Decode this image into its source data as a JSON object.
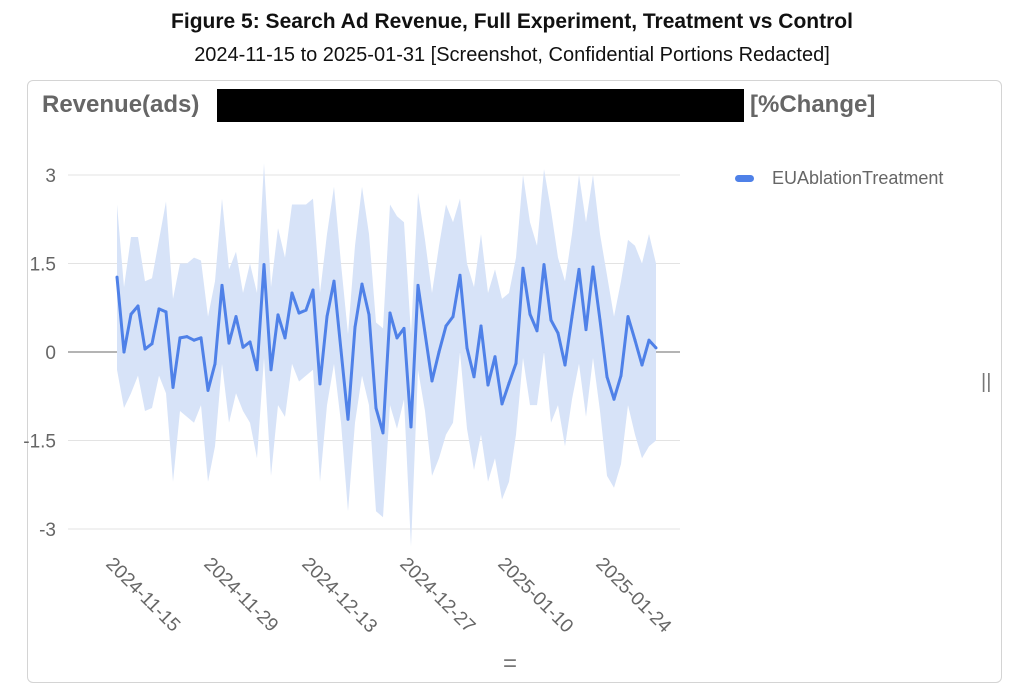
{
  "header": {
    "title": "Figure 5: Search Ad Revenue, Full Experiment, Treatment vs Control",
    "subtitle": "2024-11-15 to 2025-01-31 [Screenshot, Confidential Portions Redacted]"
  },
  "card": {
    "metric_label": "Revenue(ads)",
    "unit_label": "[%Change]",
    "vertical_handle": "||",
    "horizontal_handle": "="
  },
  "colors": {
    "line": "#4f81e8",
    "band": "#d7e3f8",
    "grid": "#e3e3e3",
    "zero": "#888888"
  },
  "chart_data": {
    "type": "line",
    "title": "Revenue(ads) [%Change]",
    "xlabel": "",
    "ylabel": "% Change",
    "x_start": "2024-11-15",
    "x_end": "2025-01-31",
    "x_ticks": [
      "2024-11-15",
      "2024-11-29",
      "2024-12-13",
      "2024-12-27",
      "2025-01-10",
      "2025-01-24"
    ],
    "y_ticks": [
      3,
      1.5,
      0,
      -1.5,
      -3
    ],
    "y_tick_labels": [
      "3",
      "1.5",
      "0",
      "-1.5",
      "-3"
    ],
    "ylim": [
      -3,
      3
    ],
    "grid": true,
    "legend": {
      "position": "right",
      "entries": [
        "EUAblationTreatment"
      ]
    },
    "series": [
      {
        "name": "EUAblationTreatment",
        "values": [
          1.27,
          0,
          0.64,
          0.78,
          0.05,
          0.14,
          0.73,
          0.68,
          -0.6,
          0.24,
          0.26,
          0.2,
          0.24,
          -0.65,
          -0.2,
          1.13,
          0.15,
          0.6,
          0.08,
          0.17,
          -0.3,
          1.48,
          -0.3,
          0.63,
          0.24,
          1.0,
          0.66,
          0.71,
          1.05,
          -0.54,
          0.6,
          1.2,
          0.03,
          -1.14,
          0.42,
          1.15,
          0.63,
          -0.95,
          -1.37,
          0.66,
          0.24,
          0.4,
          -1.27,
          1.13,
          0.32,
          -0.49,
          0,
          0.44,
          0.6,
          1.3,
          0.07,
          -0.42,
          0.44,
          -0.56,
          -0.08,
          -0.88,
          -0.53,
          -0.19,
          1.42,
          0.64,
          0.36,
          1.48,
          0.54,
          0.32,
          -0.22,
          0.6,
          1.4,
          0.38,
          1.44,
          0.54,
          -0.42,
          -0.8,
          -0.4,
          0.6,
          0.2,
          -0.22,
          0.2,
          0.07
        ],
        "upper": [
          2.5,
          1.1,
          1.95,
          1.95,
          1.2,
          1.25,
          1.9,
          2.55,
          0.9,
          1.5,
          1.5,
          1.6,
          1.55,
          0.6,
          1.2,
          2.6,
          1.4,
          1.7,
          1.0,
          1.5,
          1.0,
          3.2,
          1.1,
          2.1,
          1.6,
          2.5,
          2.5,
          2.5,
          2.6,
          1.0,
          2.0,
          2.8,
          1.5,
          0.3,
          1.8,
          2.8,
          2.0,
          0.5,
          0.4,
          2.5,
          2.3,
          2.2,
          0.3,
          2.7,
          1.9,
          1.0,
          1.8,
          2.5,
          2.2,
          2.6,
          1.5,
          1.1,
          2.0,
          1.0,
          1.4,
          0.9,
          1.0,
          1.6,
          3.0,
          2.2,
          1.8,
          3.1,
          2.4,
          1.6,
          1.2,
          2.0,
          3.0,
          2.2,
          3.0,
          2.0,
          1.3,
          0.6,
          1.2,
          1.9,
          1.8,
          1.5,
          2.0,
          1.5
        ],
        "lower": [
          -0.3,
          -0.95,
          -0.7,
          -0.4,
          -1.0,
          -0.95,
          -0.4,
          -0.7,
          -2.2,
          -1.0,
          -1.1,
          -1.2,
          -0.9,
          -2.2,
          -1.6,
          -0.2,
          -1.2,
          -0.7,
          -1.0,
          -1.2,
          -1.8,
          -0.1,
          -2.1,
          -0.9,
          -1.1,
          -0.2,
          -0.5,
          -0.4,
          -0.3,
          -2.2,
          -0.9,
          -0.2,
          -1.2,
          -2.7,
          -1.2,
          -0.4,
          -0.9,
          -2.7,
          -2.8,
          -0.9,
          -1.3,
          -0.8,
          -3.3,
          -0.3,
          -1.0,
          -2.1,
          -1.8,
          -1.4,
          -1.2,
          0.0,
          -1.3,
          -2.0,
          -1.4,
          -2.2,
          -1.8,
          -2.5,
          -2.2,
          -1.4,
          -0.1,
          -0.9,
          -0.9,
          0.0,
          -1.2,
          -0.9,
          -1.6,
          -0.8,
          -0.2,
          -1.1,
          -0.1,
          -1.0,
          -2.1,
          -2.3,
          -1.9,
          -0.9,
          -1.4,
          -1.8,
          -1.6,
          -1.5
        ]
      }
    ]
  }
}
